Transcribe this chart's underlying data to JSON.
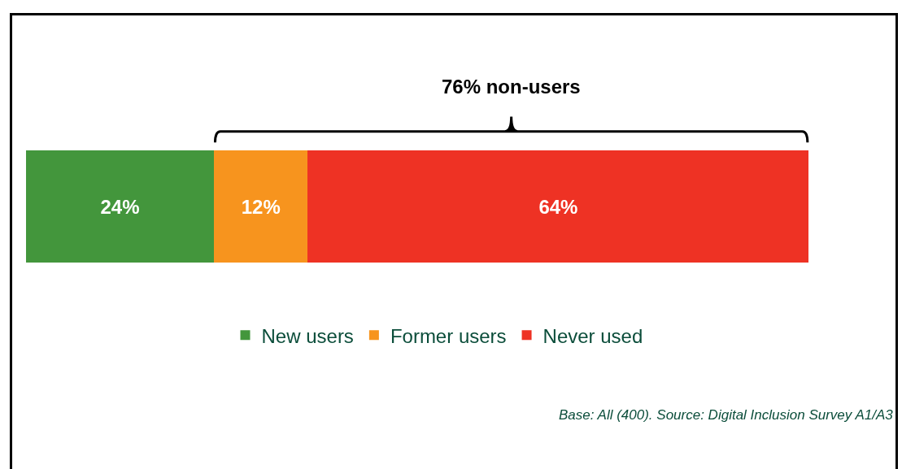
{
  "chart_data": {
    "type": "bar",
    "orientation": "horizontal",
    "stacked": true,
    "categories": [
      null
    ],
    "series": [
      {
        "name": "New users",
        "color": "#43963c",
        "values": [
          24
        ],
        "value_labels": [
          "24%"
        ]
      },
      {
        "name": "Former users",
        "color": "#f7941e",
        "values": [
          12
        ],
        "value_labels": [
          "12%"
        ]
      },
      {
        "name": "Never used",
        "color": "#ee3224",
        "values": [
          64
        ],
        "value_labels": [
          "64%"
        ]
      }
    ],
    "annotations": [
      "76% non-users",
      "Base: All (400). Source: Digital Inclusion Survey A1/A3"
    ],
    "legend": "bottom",
    "tick_labels": false
  }
}
